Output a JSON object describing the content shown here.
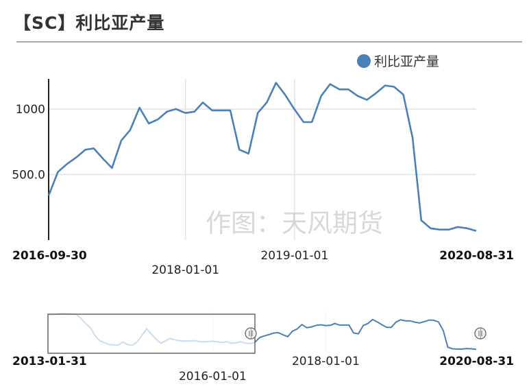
{
  "page": {
    "title": "【SC】利比亚产量",
    "watermark": "作图：天风期货"
  },
  "colors": {
    "series": "#4a80b8",
    "grid": "#e2e2e2",
    "axis": "#222222",
    "nav_line": "#b9d2e8"
  },
  "chart_data": {
    "type": "line",
    "title": "【SC】利比亚产量",
    "legend": {
      "position": "top-right",
      "entries": [
        "利比亚产量"
      ]
    },
    "main": {
      "x_start": "2016-09-30",
      "x_end": "2020-08-31",
      "x_ticks": [
        "2016-09-30",
        "2018-01-01",
        "2019-01-01",
        "2020-08-31"
      ],
      "y_ticks": [
        "500.0",
        "1000"
      ],
      "y_tick_values": [
        500,
        1000
      ],
      "grid": true
    },
    "navigator": {
      "x_start": "2013-01-31",
      "x_end": "2020-08-31",
      "x_ticks": [
        "2013-01-31",
        "2016-01-01",
        "2018-01-01",
        "2020-08-31"
      ],
      "selected_range": [
        "2013-01-31",
        "2016-09-30"
      ]
    },
    "series": [
      {
        "name": "利比亚产量",
        "color": "#4a80b8",
        "data": [
          [
            "2013-01-31",
            1380
          ],
          [
            "2013-04-30",
            1420
          ],
          [
            "2013-07-31",
            1400
          ],
          [
            "2013-08-31",
            1250
          ],
          [
            "2013-09-30",
            1050
          ],
          [
            "2013-10-31",
            900
          ],
          [
            "2013-11-30",
            600
          ],
          [
            "2013-12-31",
            400
          ],
          [
            "2014-02-28",
            250
          ],
          [
            "2014-04-30",
            230
          ],
          [
            "2014-05-31",
            350
          ],
          [
            "2014-06-30",
            250
          ],
          [
            "2014-07-31",
            220
          ],
          [
            "2014-08-31",
            350
          ],
          [
            "2014-09-30",
            600
          ],
          [
            "2014-10-31",
            850
          ],
          [
            "2014-11-30",
            650
          ],
          [
            "2014-12-31",
            450
          ],
          [
            "2015-01-31",
            300
          ],
          [
            "2015-03-31",
            480
          ],
          [
            "2015-04-30",
            430
          ],
          [
            "2015-05-31",
            400
          ],
          [
            "2015-06-30",
            380
          ],
          [
            "2015-08-31",
            400
          ],
          [
            "2015-10-31",
            350
          ],
          [
            "2015-12-31",
            380
          ],
          [
            "2016-02-29",
            330
          ],
          [
            "2016-03-31",
            360
          ],
          [
            "2016-04-30",
            300
          ],
          [
            "2016-05-31",
            320
          ],
          [
            "2016-06-30",
            360
          ],
          [
            "2016-07-31",
            300
          ],
          [
            "2016-08-31",
            290
          ],
          [
            "2016-09-30",
            340
          ],
          [
            "2016-10-31",
            520
          ],
          [
            "2016-11-30",
            580
          ],
          [
            "2016-12-31",
            630
          ],
          [
            "2017-01-31",
            690
          ],
          [
            "2017-02-28",
            700
          ],
          [
            "2017-03-31",
            620
          ],
          [
            "2017-04-30",
            550
          ],
          [
            "2017-05-31",
            760
          ],
          [
            "2017-06-30",
            840
          ],
          [
            "2017-07-31",
            1010
          ],
          [
            "2017-08-31",
            890
          ],
          [
            "2017-09-30",
            920
          ],
          [
            "2017-10-31",
            980
          ],
          [
            "2017-11-30",
            1000
          ],
          [
            "2017-12-31",
            970
          ],
          [
            "2018-01-31",
            980
          ],
          [
            "2018-02-28",
            1050
          ],
          [
            "2018-03-31",
            990
          ],
          [
            "2018-04-30",
            990
          ],
          [
            "2018-05-31",
            990
          ],
          [
            "2018-06-30",
            690
          ],
          [
            "2018-07-31",
            660
          ],
          [
            "2018-08-31",
            970
          ],
          [
            "2018-09-30",
            1050
          ],
          [
            "2018-10-31",
            1200
          ],
          [
            "2018-11-30",
            1110
          ],
          [
            "2018-12-31",
            1000
          ],
          [
            "2019-01-31",
            900
          ],
          [
            "2019-02-28",
            900
          ],
          [
            "2019-03-31",
            1100
          ],
          [
            "2019-04-30",
            1190
          ],
          [
            "2019-05-31",
            1150
          ],
          [
            "2019-06-30",
            1150
          ],
          [
            "2019-07-31",
            1100
          ],
          [
            "2019-08-31",
            1070
          ],
          [
            "2019-09-30",
            1120
          ],
          [
            "2019-10-31",
            1180
          ],
          [
            "2019-11-30",
            1170
          ],
          [
            "2019-12-31",
            1110
          ],
          [
            "2020-01-31",
            780
          ],
          [
            "2020-02-29",
            150
          ],
          [
            "2020-03-31",
            90
          ],
          [
            "2020-04-30",
            80
          ],
          [
            "2020-05-31",
            80
          ],
          [
            "2020-06-30",
            100
          ],
          [
            "2020-07-31",
            90
          ],
          [
            "2020-08-31",
            70
          ]
        ]
      }
    ]
  }
}
